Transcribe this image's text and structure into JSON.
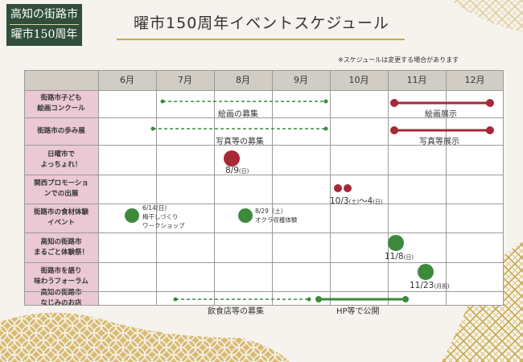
{
  "badge": {
    "line1": "高知の街路市",
    "line2": "曜市150周年"
  },
  "title": "曜市150周年イベントスケジュール",
  "note": "※スケジュールは変更する場合があります",
  "months": [
    "6月",
    "7月",
    "8月",
    "9月",
    "10月",
    "11月",
    "12月"
  ],
  "rows": [
    {
      "label": "街路市子ども\n絵画コンクール"
    },
    {
      "label": "街路市の歩み展"
    },
    {
      "label": "日曜市で\nよっちょれ！"
    },
    {
      "label": "関西プロモーショ\nンでの出展"
    },
    {
      "label": "街路市の食材体験\nイベント"
    },
    {
      "label": "高知の街路市\nまるごと体験祭！"
    },
    {
      "label": "街路市を語り\n味わうフォーラム"
    },
    {
      "label": "高知の街路市\nなじみのお店"
    }
  ],
  "events": {
    "painting_recruit": "絵画の募集",
    "painting_exhibit": "絵画展示",
    "photo_recruit": "写真等の募集",
    "photo_exhibit": "写真等展示",
    "yocchore_date": "8/9",
    "yocchore_day": "(日)",
    "kansai_start": "10/3",
    "kansai_start_day": "(土)",
    "kansai_sep": "～4",
    "kansai_end_day": "(日)",
    "food1_date": "6/14(日)",
    "food1_line2": "梅干しづくり",
    "food1_line3": "ワークショップ",
    "food2_date": "8/29（土）",
    "food2_line2": "オクラ収穫体験",
    "matsuri_date": "11/8",
    "matsuri_day": "(日)",
    "forum_date": "11/23",
    "forum_day": "(月祝)",
    "shop_recruit": "飲食店等の募集",
    "shop_publish": "HP等で公開"
  },
  "colors": {
    "green": "#3d8a3d",
    "red": "#a82836",
    "header": "#d2cdc4",
    "label_bg": "#eac9d4",
    "badge": "#2f4f3a",
    "gold": "#c9a84a"
  }
}
